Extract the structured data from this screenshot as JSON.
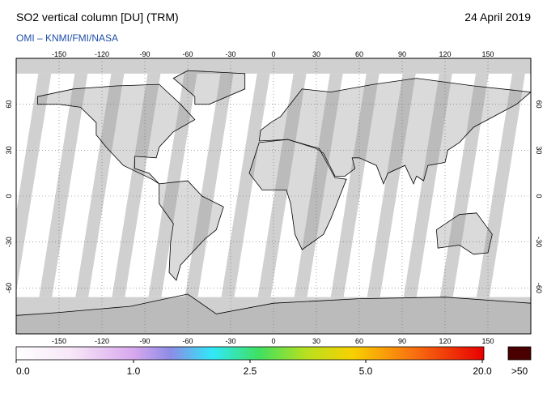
{
  "title": "SO2 vertical column [DU] (TRM)",
  "source": "OMI  –  KNMI/FMI/NASA",
  "date": "24 April 2019",
  "longitude_ticks": [
    -150,
    -120,
    -90,
    -60,
    -30,
    0,
    30,
    60,
    90,
    120,
    150
  ],
  "latitude_ticks": [
    60,
    30,
    0,
    -30,
    -60
  ],
  "colorbar": {
    "labels": [
      {
        "value": 0,
        "label": "0.0"
      },
      {
        "value": 1,
        "label": "1.0"
      },
      {
        "value": 2.5,
        "label": "2.5"
      },
      {
        "value": 5,
        "label": "5.0"
      },
      {
        "value": 20,
        "label": "20.0"
      }
    ],
    "overflow_label": ">50"
  }
}
